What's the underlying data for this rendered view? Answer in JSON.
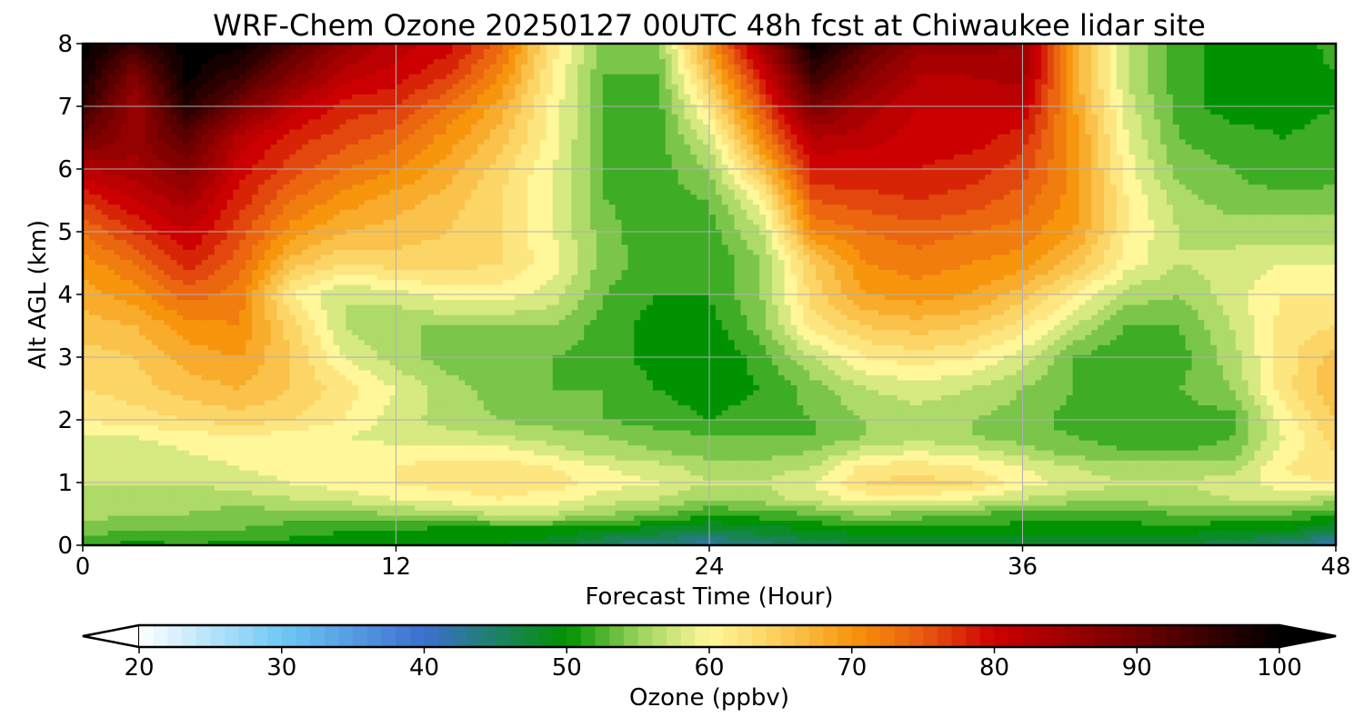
{
  "chart_data": {
    "type": "heatmap",
    "title": "WRF-Chem Ozone  20250127 00UTC 48h fcst at Chiwaukee lidar site",
    "xlabel": "Forecast Time (Hour)",
    "ylabel": "Alt AGL (km)",
    "xlim": [
      0,
      48
    ],
    "ylim": [
      0,
      8
    ],
    "x_ticks": [
      0,
      12,
      24,
      36,
      48
    ],
    "y_ticks": [
      0,
      1,
      2,
      3,
      4,
      5,
      6,
      7,
      8
    ],
    "grid": true,
    "colorbar": {
      "label": "Ozone  (ppbv)",
      "range": [
        20,
        100
      ],
      "ticks": [
        20,
        30,
        40,
        50,
        60,
        70,
        80,
        90,
        100
      ],
      "extend": "both",
      "color_stops": [
        {
          "value": 20,
          "color": "#ffffff"
        },
        {
          "value": 30,
          "color": "#6fc8f5"
        },
        {
          "value": 40,
          "color": "#3c6fcf"
        },
        {
          "value": 50,
          "color": "#009200"
        },
        {
          "value": 55,
          "color": "#9ad35c"
        },
        {
          "value": 60,
          "color": "#fff799"
        },
        {
          "value": 65,
          "color": "#fbcd5a"
        },
        {
          "value": 70,
          "color": "#f7950c"
        },
        {
          "value": 75,
          "color": "#e85a10"
        },
        {
          "value": 80,
          "color": "#cc0000"
        },
        {
          "value": 90,
          "color": "#700000"
        },
        {
          "value": 100,
          "color": "#000000"
        }
      ],
      "under_color": "#ffffff",
      "over_color": "#000000"
    },
    "hours": [
      0,
      2,
      4,
      6,
      8,
      10,
      12,
      14,
      16,
      18,
      20,
      22,
      24,
      26,
      28,
      30,
      32,
      34,
      36,
      38,
      40,
      42,
      44,
      46,
      48
    ],
    "altitudes_km": [
      0,
      0.25,
      0.5,
      0.75,
      1,
      1.25,
      1.5,
      1.75,
      2,
      2.5,
      3,
      3.5,
      4,
      4.5,
      5,
      5.5,
      6,
      6.5,
      7,
      7.5,
      8
    ],
    "values_ppbv": [
      [
        52,
        50,
        51,
        50,
        50,
        50,
        50,
        50,
        49,
        48,
        45,
        43,
        42,
        44,
        46,
        47,
        48,
        48,
        48,
        48,
        48,
        47,
        46,
        44,
        41
      ],
      [
        54,
        53,
        53,
        53,
        52,
        51,
        51,
        50,
        50,
        50,
        49,
        48,
        47,
        48,
        49,
        50,
        50,
        50,
        50,
        50,
        50,
        50,
        49,
        49,
        47
      ],
      [
        56,
        55,
        55,
        54,
        54,
        54,
        55,
        56,
        57,
        57,
        55,
        54,
        51,
        52,
        53,
        55,
        54,
        53,
        52,
        52,
        52,
        53,
        53,
        53,
        51
      ],
      [
        57,
        56,
        56,
        56,
        57,
        58,
        59,
        60,
        61,
        60,
        58,
        57,
        55,
        56,
        58,
        60,
        60,
        59,
        57,
        56,
        56,
        56,
        57,
        58,
        56
      ],
      [
        57,
        57,
        57,
        58,
        59,
        60,
        61,
        62,
        62,
        62,
        60,
        59,
        57,
        57,
        59,
        63,
        64,
        63,
        60,
        58,
        57,
        57,
        58,
        60,
        61
      ],
      [
        57,
        57,
        58,
        59,
        60,
        61,
        61,
        62,
        62,
        61,
        59,
        58,
        56,
        56,
        57,
        62,
        62,
        61,
        59,
        57,
        56,
        56,
        56,
        61,
        63
      ],
      [
        58,
        58,
        59,
        60,
        60,
        60,
        60,
        60,
        60,
        58,
        56,
        55,
        54,
        54,
        55,
        58,
        59,
        58,
        56,
        54,
        53,
        53,
        54,
        60,
        63
      ],
      [
        59,
        59,
        60,
        61,
        60,
        59,
        58,
        58,
        57,
        56,
        55,
        54,
        53,
        53,
        53,
        55,
        56,
        55,
        54,
        53,
        52,
        51,
        53,
        59,
        64
      ],
      [
        61,
        62,
        63,
        64,
        63,
        61,
        58,
        56,
        55,
        54,
        53,
        52,
        51,
        52,
        53,
        55,
        56,
        55,
        54,
        52,
        51,
        52,
        52,
        60,
        65
      ],
      [
        63,
        64,
        66,
        67,
        65,
        62,
        59,
        56,
        54,
        53,
        53,
        51,
        50,
        51,
        54,
        57,
        58,
        57,
        55,
        53,
        52,
        53,
        55,
        62,
        67
      ],
      [
        64,
        65,
        68,
        69,
        65,
        59,
        56,
        54,
        53,
        53,
        52,
        50,
        49,
        52,
        57,
        61,
        62,
        61,
        58,
        53,
        51,
        52,
        56,
        62,
        66
      ],
      [
        66,
        67,
        70,
        71,
        64,
        57,
        55,
        55,
        55,
        55,
        52,
        50,
        50,
        54,
        62,
        65,
        66,
        65,
        62,
        57,
        53,
        53,
        57,
        62,
        63
      ],
      [
        68,
        70,
        74,
        72,
        61,
        57,
        58,
        60,
        60,
        58,
        53,
        51,
        51,
        55,
        64,
        69,
        70,
        69,
        66,
        61,
        56,
        55,
        58,
        61,
        61
      ],
      [
        70,
        73,
        78,
        74,
        66,
        63,
        64,
        64,
        63,
        60,
        54,
        52,
        51,
        55,
        65,
        71,
        72,
        71,
        70,
        66,
        60,
        57,
        58,
        59,
        59
      ],
      [
        73,
        77,
        81,
        76,
        70,
        67,
        66,
        65,
        63,
        59,
        54,
        51,
        52,
        57,
        71,
        73,
        74,
        73,
        72,
        69,
        61,
        57,
        56,
        56,
        56
      ],
      [
        77,
        81,
        84,
        78,
        73,
        70,
        68,
        66,
        63,
        59,
        53,
        52,
        53,
        60,
        75,
        76,
        77,
        76,
        74,
        70,
        61,
        56,
        54,
        54,
        54
      ],
      [
        83,
        84,
        88,
        80,
        76,
        73,
        71,
        68,
        64,
        59,
        53,
        52,
        55,
        66,
        79,
        79,
        79,
        78,
        76,
        70,
        60,
        54,
        53,
        51,
        52
      ],
      [
        90,
        86,
        92,
        82,
        78,
        76,
        74,
        70,
        66,
        60,
        53,
        52,
        58,
        71,
        83,
        82,
        80,
        80,
        78,
        70,
        59,
        53,
        52,
        51,
        52
      ],
      [
        95,
        85,
        97,
        89,
        82,
        78,
        77,
        73,
        68,
        60,
        53,
        52,
        62,
        75,
        89,
        84,
        81,
        81,
        81,
        69,
        58,
        52,
        50,
        50,
        51
      ],
      [
        99,
        88,
        100,
        95,
        88,
        82,
        80,
        77,
        71,
        61,
        53,
        53,
        66,
        79,
        95,
        88,
        83,
        83,
        84,
        68,
        57,
        52,
        50,
        49,
        51
      ],
      [
        100,
        95,
        100,
        100,
        93,
        86,
        82,
        80,
        74,
        62,
        54,
        54,
        70,
        84,
        100,
        92,
        86,
        86,
        85,
        68,
        57,
        52,
        50,
        49,
        52
      ]
    ]
  }
}
